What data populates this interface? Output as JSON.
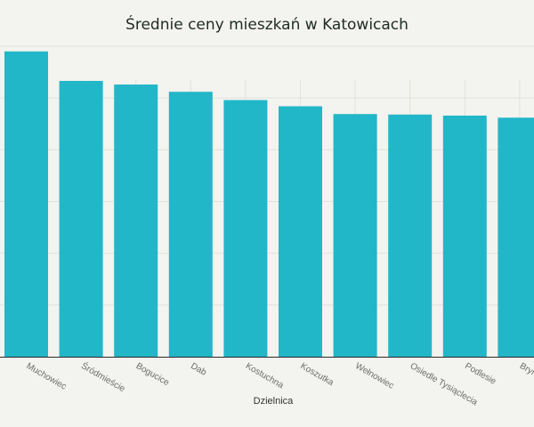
{
  "chart_data": {
    "type": "bar",
    "title": "Średnie ceny mieszkań w Katowicach",
    "xlabel": "Dzielnica",
    "ylabel": "",
    "categories": [
      "Muchowiec",
      "Śródmieście",
      "Bogucice",
      "Dab",
      "Kostuchna",
      "Koszutka",
      "Wełnowiec",
      "Osiedle Tysiąclecia",
      "Podlesie",
      "Brynów"
    ],
    "values": [
      5.9,
      5.33,
      5.26,
      5.12,
      4.96,
      4.84,
      4.69,
      4.68,
      4.66,
      4.62
    ],
    "ylim": [
      0,
      6
    ],
    "grid": true,
    "legend": "none",
    "colors": {
      "bar": "#22b6c9",
      "grid": "#e2e2dd",
      "axis": "#2a2a2a"
    }
  }
}
